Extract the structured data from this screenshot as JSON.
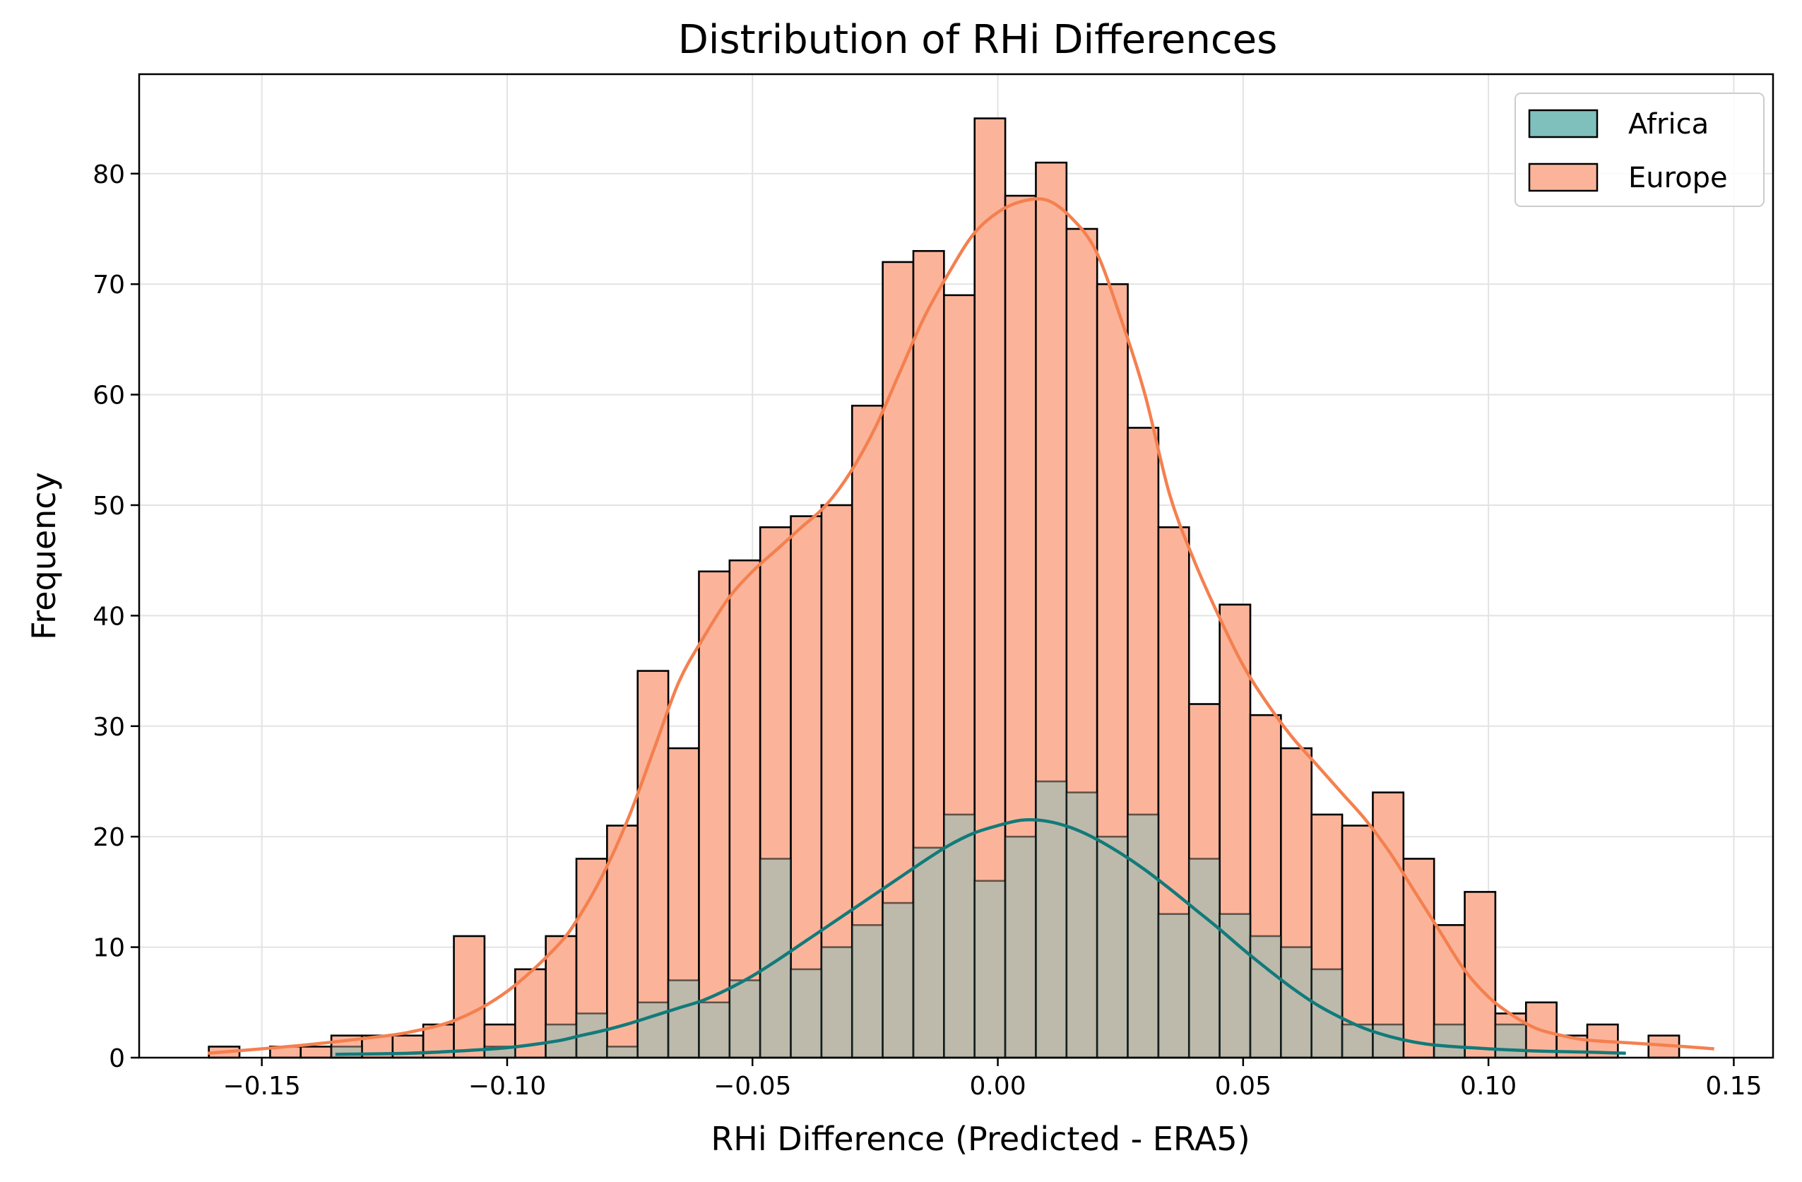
{
  "chart_data": {
    "type": "histogram",
    "title": "Distribution of RHi Differences",
    "xlabel": "RHi Difference (Predicted - ERA5)",
    "ylabel": "Frequency",
    "xlim": [
      -0.175,
      0.158
    ],
    "ylim": [
      0,
      89
    ],
    "xticks": [
      -0.15,
      -0.1,
      -0.05,
      0.0,
      0.05,
      0.1,
      0.15
    ],
    "xtick_labels": [
      "−0.15",
      "−0.10",
      "−0.05",
      "0.00",
      "0.05",
      "0.10",
      "0.15"
    ],
    "yticks": [
      0,
      10,
      20,
      30,
      40,
      50,
      60,
      70,
      80
    ],
    "ytick_labels": [
      "0",
      "10",
      "20",
      "30",
      "40",
      "50",
      "60",
      "70",
      "80"
    ],
    "grid": true,
    "legend_position": "top-right",
    "series": [
      {
        "name": "Europe",
        "color": "#fbb49a",
        "line_color": "#f4804f",
        "bin_start": -0.1608,
        "bin_width": 0.006243,
        "counts": [
          1,
          0,
          1,
          1,
          2,
          2,
          2,
          3,
          11,
          3,
          8,
          11,
          18,
          21,
          35,
          28,
          44,
          45,
          48,
          49,
          50,
          59,
          72,
          73,
          69,
          85,
          78,
          81,
          75,
          70,
          57,
          48,
          32,
          41,
          31,
          28,
          22,
          21,
          24,
          18,
          12,
          15,
          4,
          5,
          2,
          3,
          0,
          2
        ],
        "kde": [
          [
            -0.161,
            0.4
          ],
          [
            -0.15,
            0.8
          ],
          [
            -0.14,
            1.2
          ],
          [
            -0.13,
            1.7
          ],
          [
            -0.12,
            2.3
          ],
          [
            -0.11,
            3.5
          ],
          [
            -0.1,
            6
          ],
          [
            -0.09,
            10
          ],
          [
            -0.085,
            13
          ],
          [
            -0.08,
            17
          ],
          [
            -0.075,
            22
          ],
          [
            -0.07,
            28
          ],
          [
            -0.065,
            34
          ],
          [
            -0.06,
            38
          ],
          [
            -0.055,
            41.5
          ],
          [
            -0.05,
            44
          ],
          [
            -0.045,
            46
          ],
          [
            -0.04,
            48
          ],
          [
            -0.035,
            50
          ],
          [
            -0.03,
            53
          ],
          [
            -0.025,
            57
          ],
          [
            -0.02,
            62
          ],
          [
            -0.015,
            67
          ],
          [
            -0.01,
            71
          ],
          [
            -0.005,
            74.5
          ],
          [
            0.0,
            76.5
          ],
          [
            0.005,
            77.5
          ],
          [
            0.01,
            77.6
          ],
          [
            0.015,
            76
          ],
          [
            0.02,
            73
          ],
          [
            0.025,
            67
          ],
          [
            0.03,
            60
          ],
          [
            0.035,
            51
          ],
          [
            0.04,
            45
          ],
          [
            0.045,
            40
          ],
          [
            0.05,
            35.5
          ],
          [
            0.055,
            32
          ],
          [
            0.06,
            29
          ],
          [
            0.065,
            26.5
          ],
          [
            0.07,
            24
          ],
          [
            0.075,
            21.5
          ],
          [
            0.08,
            18.5
          ],
          [
            0.085,
            15
          ],
          [
            0.09,
            11.5
          ],
          [
            0.095,
            8
          ],
          [
            0.1,
            5.5
          ],
          [
            0.105,
            3.8
          ],
          [
            0.11,
            2.6
          ],
          [
            0.115,
            2.0
          ],
          [
            0.12,
            1.6
          ],
          [
            0.13,
            1.3
          ],
          [
            0.14,
            1.0
          ],
          [
            0.146,
            0.8
          ]
        ]
      },
      {
        "name": "Africa",
        "color": "#7fbfbc",
        "line_color": "#127a7a",
        "bin_start": -0.1608,
        "bin_width": 0.006243,
        "counts": [
          0,
          0,
          0,
          0,
          1,
          0,
          0,
          0,
          0,
          1,
          0,
          3,
          4,
          1,
          5,
          7,
          5,
          7,
          18,
          8,
          10,
          12,
          14,
          19,
          22,
          16,
          20,
          25,
          24,
          20,
          22,
          13,
          18,
          13,
          11,
          10,
          8,
          3,
          3,
          0,
          3,
          0,
          3,
          0,
          0,
          0,
          0,
          0
        ],
        "kde": [
          [
            -0.135,
            0.3
          ],
          [
            -0.12,
            0.4
          ],
          [
            -0.11,
            0.6
          ],
          [
            -0.1,
            0.9
          ],
          [
            -0.09,
            1.5
          ],
          [
            -0.085,
            2.0
          ],
          [
            -0.08,
            2.5
          ],
          [
            -0.075,
            3.1
          ],
          [
            -0.07,
            3.8
          ],
          [
            -0.065,
            4.5
          ],
          [
            -0.06,
            5.2
          ],
          [
            -0.055,
            6.2
          ],
          [
            -0.05,
            7.4
          ],
          [
            -0.045,
            8.8
          ],
          [
            -0.04,
            10.3
          ],
          [
            -0.035,
            11.8
          ],
          [
            -0.03,
            13.3
          ],
          [
            -0.025,
            14.8
          ],
          [
            -0.02,
            16.3
          ],
          [
            -0.015,
            17.8
          ],
          [
            -0.01,
            19.2
          ],
          [
            -0.005,
            20.3
          ],
          [
            0.0,
            21.0
          ],
          [
            0.005,
            21.5
          ],
          [
            0.01,
            21.4
          ],
          [
            0.015,
            20.8
          ],
          [
            0.02,
            19.8
          ],
          [
            0.025,
            18.5
          ],
          [
            0.03,
            17.0
          ],
          [
            0.035,
            15.3
          ],
          [
            0.04,
            13.5
          ],
          [
            0.045,
            11.7
          ],
          [
            0.05,
            9.8
          ],
          [
            0.055,
            8.0
          ],
          [
            0.06,
            6.3
          ],
          [
            0.065,
            4.8
          ],
          [
            0.07,
            3.6
          ],
          [
            0.075,
            2.6
          ],
          [
            0.08,
            1.9
          ],
          [
            0.085,
            1.4
          ],
          [
            0.09,
            1.1
          ],
          [
            0.1,
            0.8
          ],
          [
            0.11,
            0.6
          ],
          [
            0.12,
            0.5
          ],
          [
            0.128,
            0.4
          ]
        ]
      }
    ]
  }
}
